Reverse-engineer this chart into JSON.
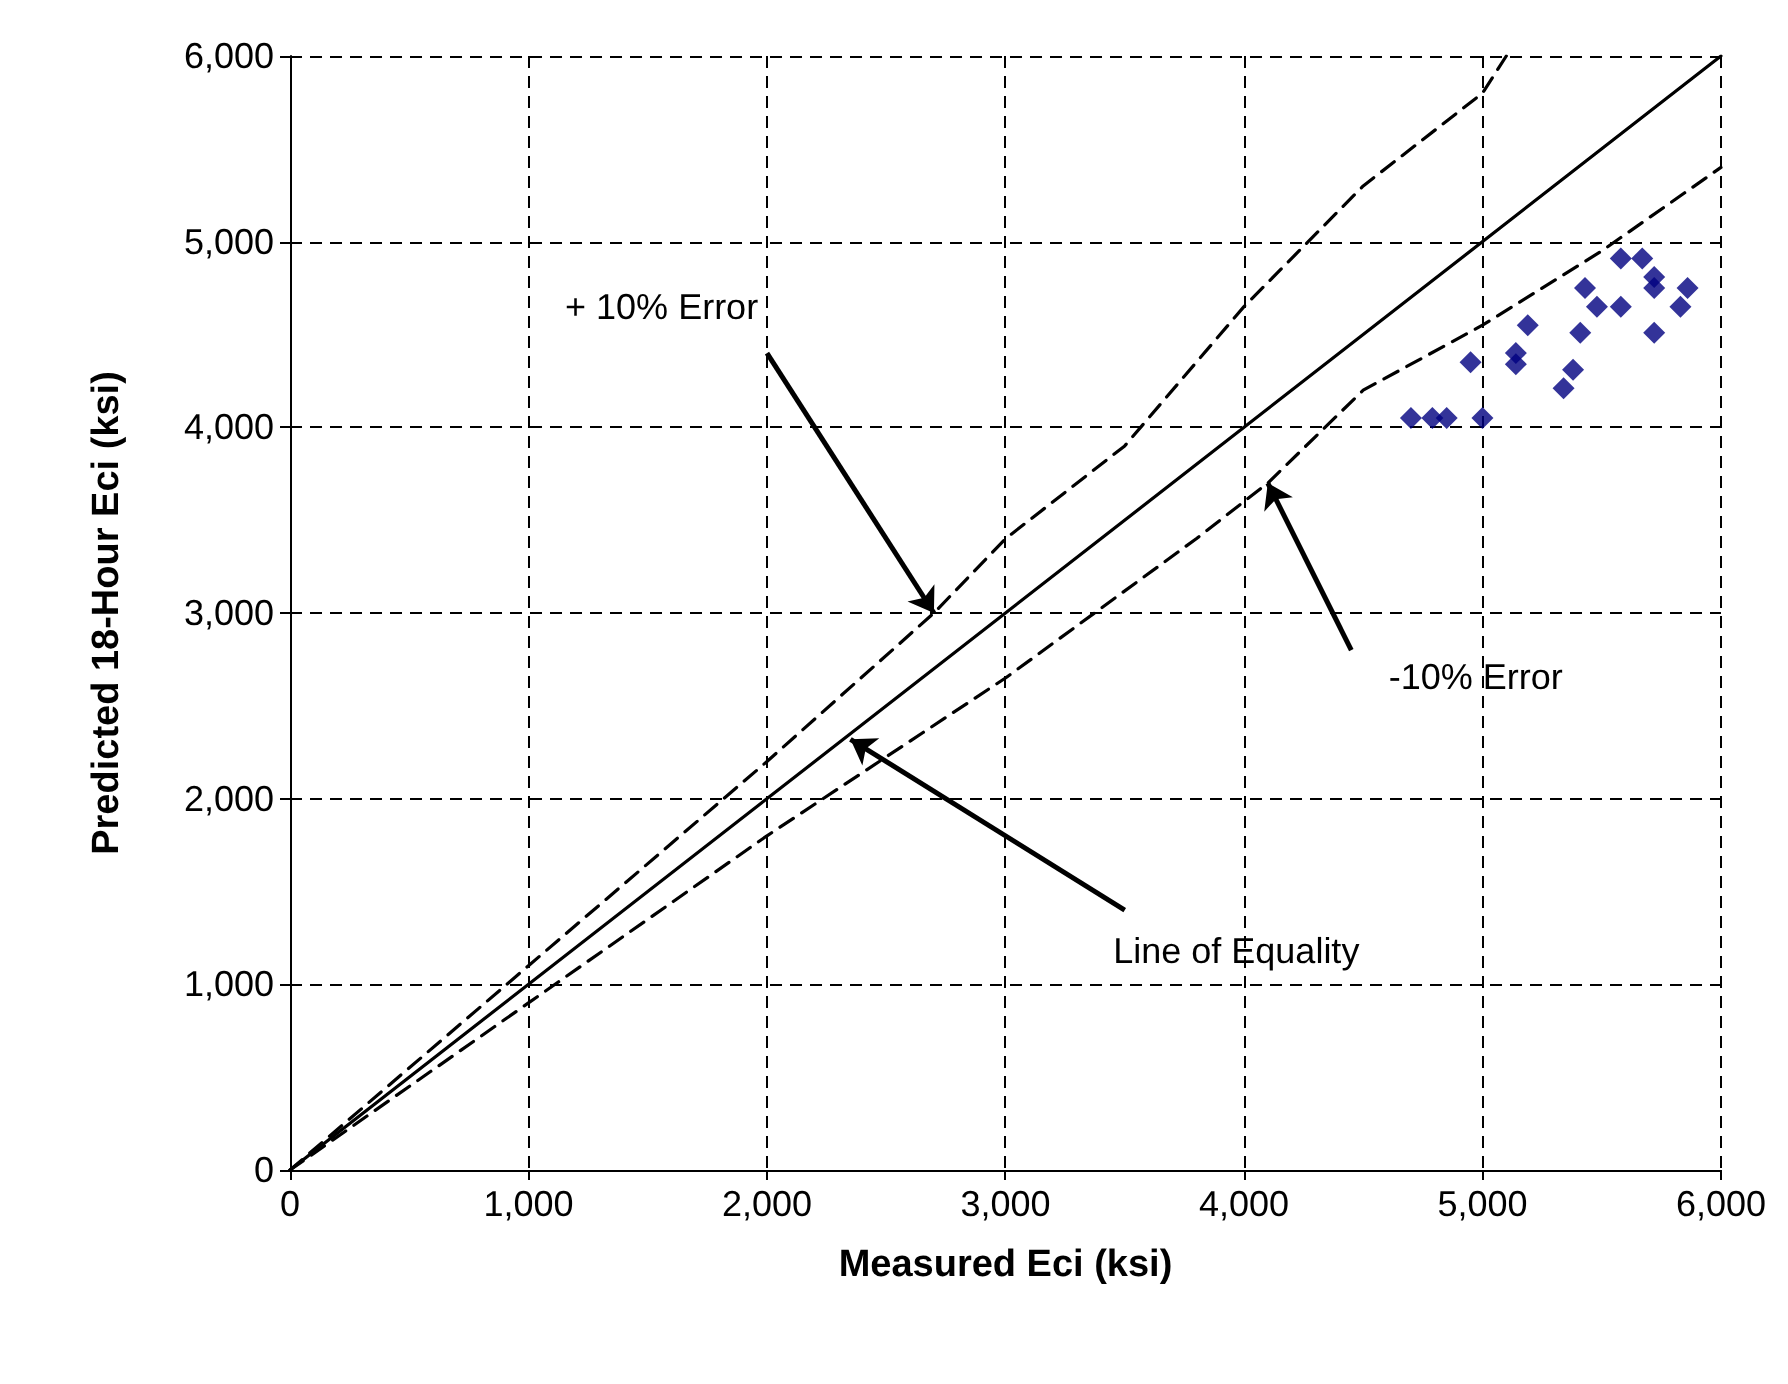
{
  "chart_data": {
    "type": "scatter",
    "xlabel": "Measured Eci (ksi)",
    "ylabel": "Predicted 18-Hour Eci (ksi)",
    "xlim": [
      0,
      6000
    ],
    "ylim": [
      0,
      6000
    ],
    "xticks": [
      0,
      {
        "value": 1000,
        "label": "1,000"
      },
      {
        "value": 2000,
        "label": "2,000"
      },
      {
        "value": 3000,
        "label": "3,000"
      },
      {
        "value": 4000,
        "label": "4,000"
      },
      {
        "value": 5000,
        "label": "5,000"
      },
      {
        "value": 6000,
        "label": "6,000"
      }
    ],
    "yticks": [
      0,
      {
        "value": 1000,
        "label": "1,000"
      },
      {
        "value": 2000,
        "label": "2,000"
      },
      {
        "value": 3000,
        "label": "3,000"
      },
      {
        "value": 4000,
        "label": "4,000"
      },
      {
        "value": 5000,
        "label": "5,000"
      },
      {
        "value": 6000,
        "label": "6,000"
      }
    ],
    "grid": true,
    "series": [
      {
        "color": "#000080",
        "marker": "diamond",
        "x": [
          4700,
          4790,
          4850,
          5000,
          4950,
          5140,
          5140,
          5190,
          5340,
          5380,
          5410,
          5430,
          5480,
          5580,
          5580,
          5670,
          5720,
          5720,
          5720,
          5830,
          5860
        ],
        "values": [
          4050,
          4050,
          4050,
          4050,
          4350,
          4400,
          4340,
          4550,
          4210,
          4310,
          4510,
          4750,
          4650,
          4910,
          4650,
          4910,
          4810,
          4750,
          4510,
          4650,
          4750
        ]
      },
      {
        "type": "line",
        "color": "#000000",
        "marker": "none",
        "line_style": "solid",
        "x": [
          0,
          6000
        ],
        "values": [
          0,
          6000
        ]
      },
      {
        "type": "line",
        "color": "#000000",
        "marker": "none",
        "line_style": "dashed",
        "x": [
          0,
          1000,
          2000,
          2700,
          3000,
          3500,
          4000,
          4500,
          5000,
          5100
        ],
        "values": [
          0,
          1100,
          2200,
          3000,
          3400,
          3900,
          4650,
          5300,
          5800,
          6000
        ]
      },
      {
        "type": "line",
        "color": "#000000",
        "marker": "none",
        "line_style": "dashed",
        "x": [
          0,
          1000,
          2000,
          3000,
          3800,
          4100,
          4500,
          5000,
          5500,
          6000
        ],
        "values": [
          0,
          900,
          1800,
          2650,
          3400,
          3700,
          4200,
          4550,
          4950,
          5400
        ]
      }
    ],
    "annotations": [
      {
        "text": "+ 10% Error",
        "x": 2700,
        "y": 3000
      },
      {
        "text": "-10% Error",
        "x": 4100,
        "y": 3700
      },
      {
        "text": "Line of Equality",
        "x": 2350,
        "y": 2320
      }
    ]
  }
}
